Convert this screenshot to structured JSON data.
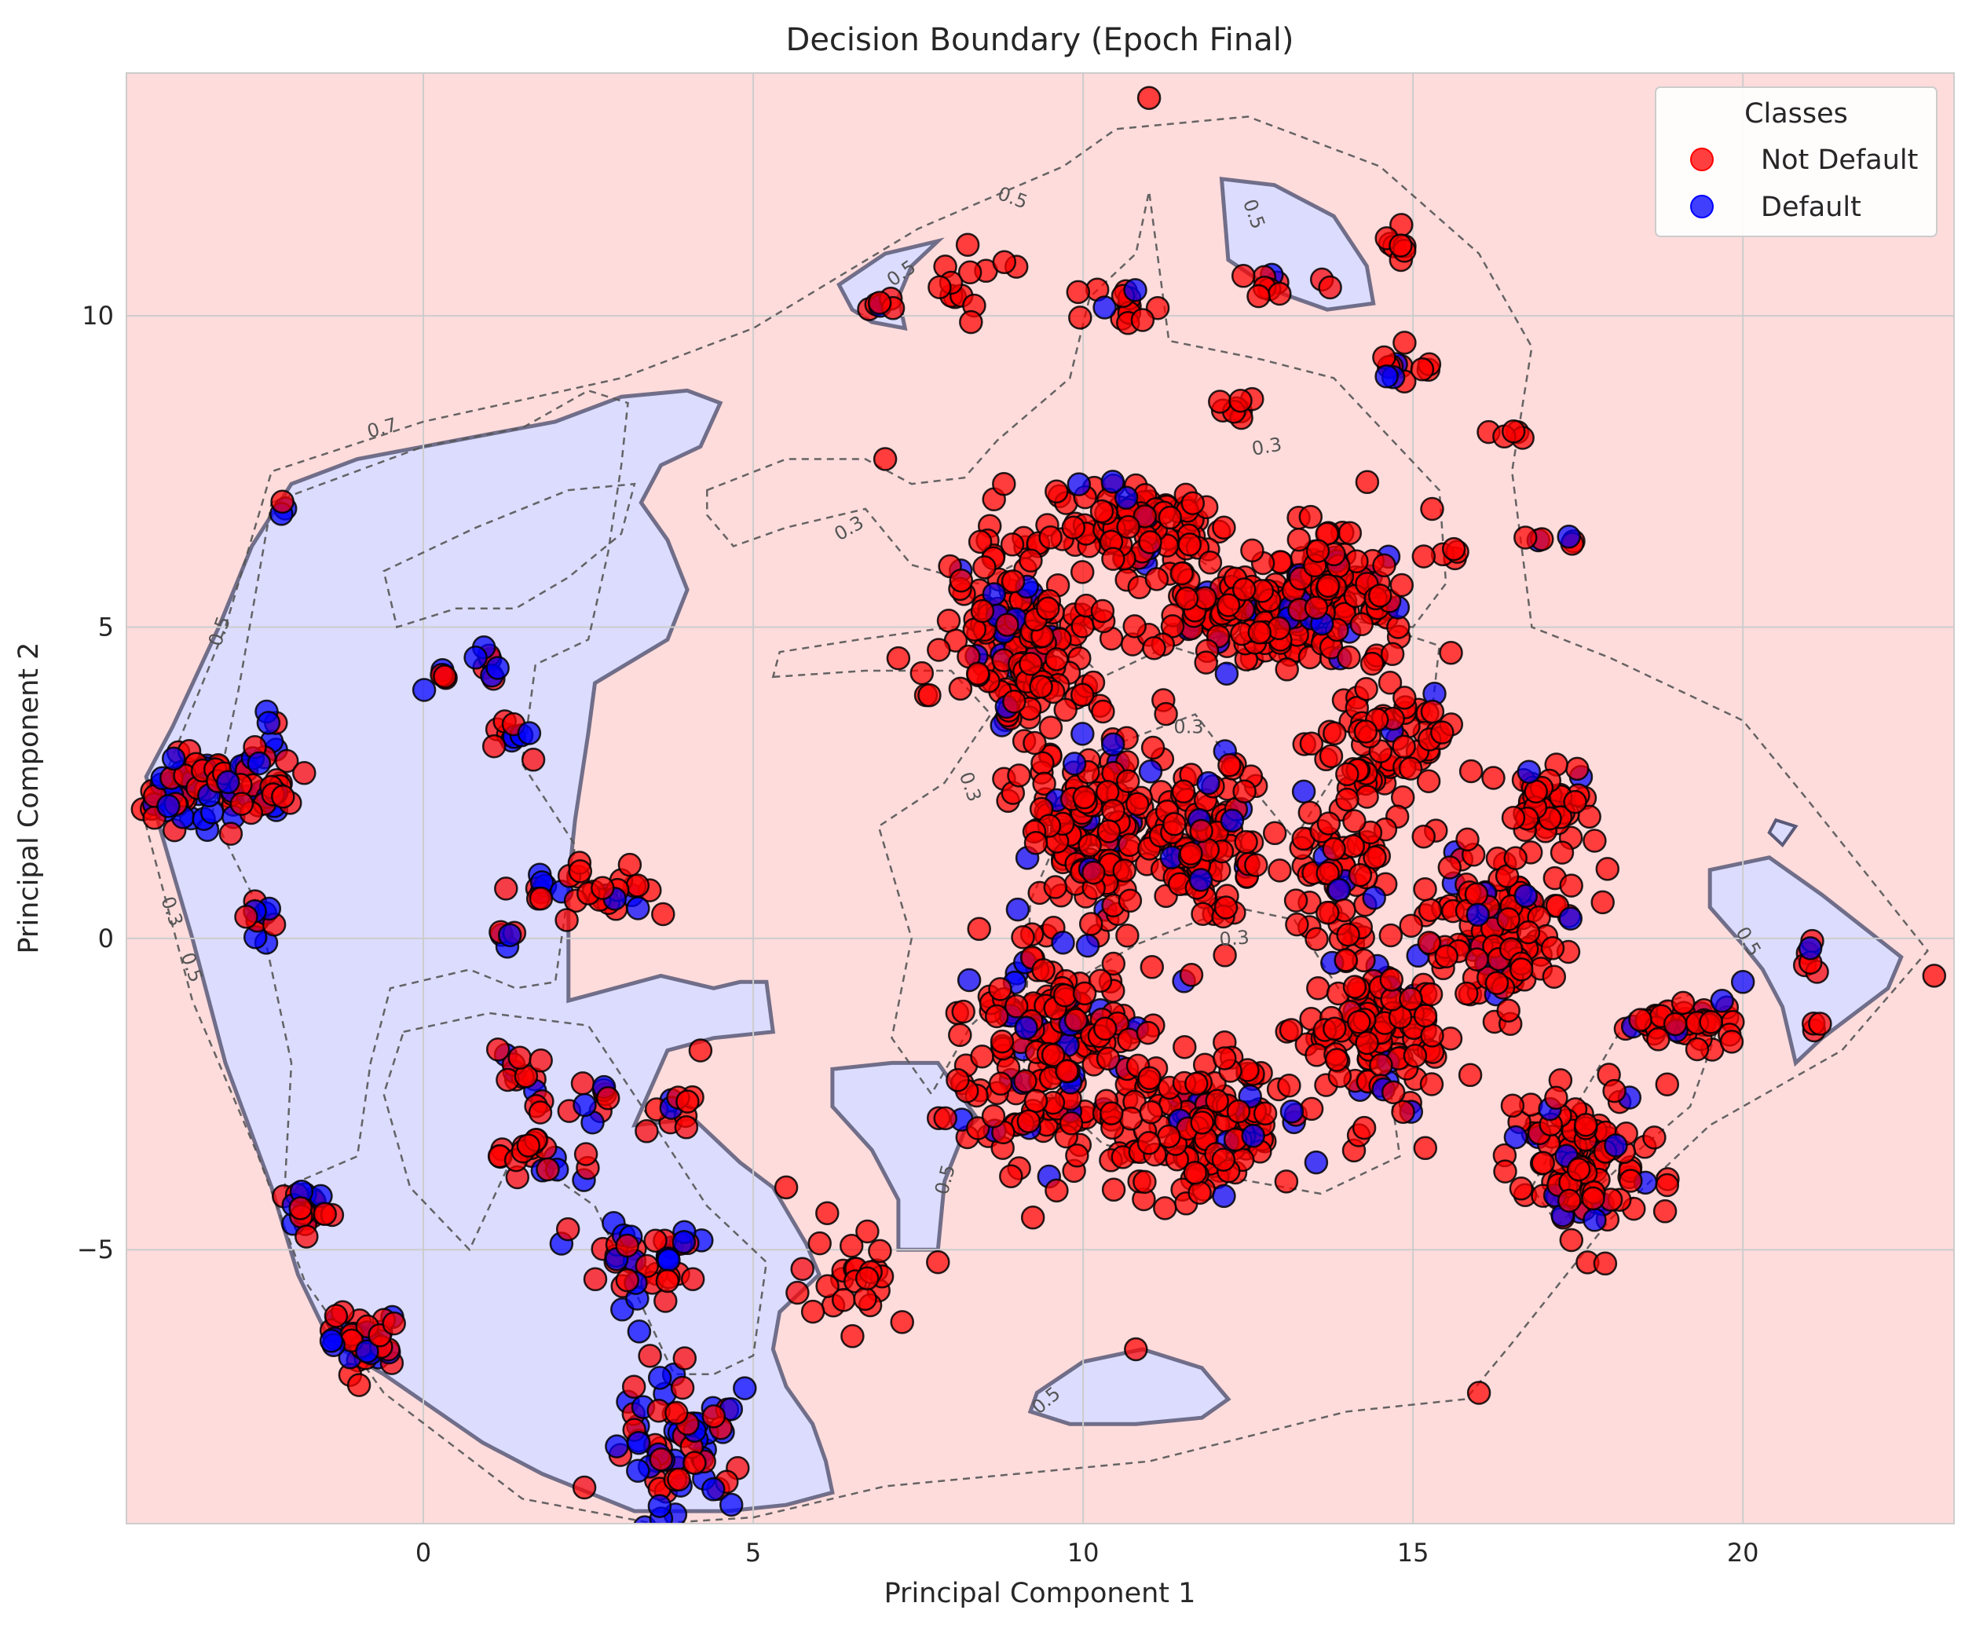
{
  "chart_data": {
    "type": "scatter",
    "title": "Decision Boundary (Epoch Final)",
    "xlabel": "Principal Component 1",
    "ylabel": "Principal Component 2",
    "xlim": [
      -4.5,
      23.2
    ],
    "ylim": [
      -9.4,
      13.9
    ],
    "xticks": [
      0,
      5,
      10,
      15,
      20
    ],
    "yticks": [
      -5,
      0,
      5,
      10
    ],
    "xtick_labels": [
      "0",
      "5",
      "10",
      "15",
      "20"
    ],
    "ytick_labels": [
      "−5",
      "0",
      "5",
      "10"
    ],
    "grid": true,
    "legend": {
      "title": "Classes",
      "position": "top-right",
      "entries": [
        {
          "label": "Not Default",
          "color": "#ff0000"
        },
        {
          "label": "Default",
          "color": "#0000ff"
        }
      ]
    },
    "background_color": "#ffdcdc",
    "boundary_region_color": "#dcdcff",
    "contour_labels": [
      "0.7",
      "0.5",
      "0.5",
      "0.5",
      "0.5",
      "0.5",
      "0.5",
      "0.5",
      "0.5",
      "0.3",
      "0.3",
      "0.3",
      "0.3",
      "0.3",
      "0.3"
    ],
    "clusters": [
      {
        "cx": -3.5,
        "cy": 2.4,
        "rx": 0.6,
        "ry": 0.6,
        "n": 55,
        "p_default": 0.5
      },
      {
        "cx": -2.5,
        "cy": 2.6,
        "rx": 0.5,
        "ry": 0.6,
        "n": 40,
        "p_default": 0.5
      },
      {
        "cx": -2.5,
        "cy": 0.3,
        "rx": 0.2,
        "ry": 0.4,
        "n": 10,
        "p_default": 0.5
      },
      {
        "cx": -2.1,
        "cy": 6.9,
        "rx": 0.1,
        "ry": 0.3,
        "n": 3,
        "p_default": 0.6
      },
      {
        "cx": -1.7,
        "cy": -4.3,
        "rx": 0.4,
        "ry": 0.4,
        "n": 20,
        "p_default": 0.5
      },
      {
        "cx": -0.9,
        "cy": -6.4,
        "rx": 0.5,
        "ry": 0.5,
        "n": 40,
        "p_default": 0.5
      },
      {
        "cx": 0.2,
        "cy": 4.2,
        "rx": 0.2,
        "ry": 0.15,
        "n": 6,
        "p_default": 0.4
      },
      {
        "cx": 1.0,
        "cy": 4.6,
        "rx": 0.3,
        "ry": 0.3,
        "n": 8,
        "p_default": 0.4
      },
      {
        "cx": 1.3,
        "cy": 3.2,
        "rx": 0.35,
        "ry": 0.25,
        "n": 10,
        "p_default": 0.4
      },
      {
        "cx": 1.7,
        "cy": 0.9,
        "rx": 0.3,
        "ry": 0.2,
        "n": 8,
        "p_default": 0.3
      },
      {
        "cx": 1.3,
        "cy": 0.0,
        "rx": 0.2,
        "ry": 0.1,
        "n": 5,
        "p_default": 0.6
      },
      {
        "cx": 1.5,
        "cy": -2.2,
        "rx": 0.3,
        "ry": 0.4,
        "n": 12,
        "p_default": 0.3
      },
      {
        "cx": 1.7,
        "cy": -3.4,
        "rx": 0.5,
        "ry": 0.5,
        "n": 25,
        "p_default": 0.3
      },
      {
        "cx": 2.7,
        "cy": -2.4,
        "rx": 0.3,
        "ry": 0.4,
        "n": 8,
        "p_default": 0.3
      },
      {
        "cx": 3.0,
        "cy": 0.8,
        "rx": 0.7,
        "ry": 0.4,
        "n": 25,
        "p_default": 0.1
      },
      {
        "cx": 3.4,
        "cy": -5.2,
        "rx": 0.7,
        "ry": 0.6,
        "n": 40,
        "p_default": 0.5
      },
      {
        "cx": 3.8,
        "cy": -8.2,
        "rx": 0.9,
        "ry": 0.9,
        "n": 70,
        "p_default": 0.4
      },
      {
        "cx": 3.8,
        "cy": -2.8,
        "rx": 0.4,
        "ry": 0.4,
        "n": 10,
        "p_default": 0.2
      },
      {
        "cx": 6.5,
        "cy": -5.4,
        "rx": 0.8,
        "ry": 0.6,
        "n": 25,
        "p_default": 0.05
      },
      {
        "cx": 7.0,
        "cy": 10.15,
        "rx": 0.3,
        "ry": 0.1,
        "n": 6,
        "p_default": 0.2
      },
      {
        "cx": 8.4,
        "cy": 10.6,
        "rx": 0.6,
        "ry": 0.3,
        "n": 12,
        "p_default": 0.1
      },
      {
        "cx": 10.4,
        "cy": 10.2,
        "rx": 0.6,
        "ry": 0.4,
        "n": 15,
        "p_default": 0.1
      },
      {
        "cx": 12.6,
        "cy": 10.5,
        "rx": 0.6,
        "ry": 0.2,
        "n": 10,
        "p_default": 0.05
      },
      {
        "cx": 14.8,
        "cy": 11.1,
        "rx": 0.2,
        "ry": 0.3,
        "n": 8,
        "p_default": 0.0
      },
      {
        "cx": 14.8,
        "cy": 9.2,
        "rx": 0.5,
        "ry": 0.3,
        "n": 12,
        "p_default": 0.3
      },
      {
        "cx": 12.3,
        "cy": 8.5,
        "rx": 0.3,
        "ry": 0.2,
        "n": 8,
        "p_default": 0.05
      },
      {
        "cx": 16.4,
        "cy": 8.1,
        "rx": 0.3,
        "ry": 0.1,
        "n": 5,
        "p_default": 0.0
      },
      {
        "cx": 17.1,
        "cy": 6.4,
        "rx": 0.3,
        "ry": 0.1,
        "n": 6,
        "p_default": 0.4
      },
      {
        "cx": 15.7,
        "cy": 6.2,
        "rx": 0.2,
        "ry": 0.1,
        "n": 4,
        "p_default": 0.0
      },
      {
        "cx": 9.0,
        "cy": 4.8,
        "rx": 0.9,
        "ry": 1.3,
        "n": 160,
        "p_default": 0.1
      },
      {
        "cx": 10.8,
        "cy": 6.6,
        "rx": 1.2,
        "ry": 0.7,
        "n": 110,
        "p_default": 0.1
      },
      {
        "cx": 12.3,
        "cy": 5.2,
        "rx": 1.2,
        "ry": 0.6,
        "n": 110,
        "p_default": 0.1
      },
      {
        "cx": 13.8,
        "cy": 5.6,
        "rx": 1.0,
        "ry": 0.9,
        "n": 120,
        "p_default": 0.1
      },
      {
        "cx": 14.6,
        "cy": 3.3,
        "rx": 0.9,
        "ry": 0.9,
        "n": 70,
        "p_default": 0.1
      },
      {
        "cx": 10.2,
        "cy": 1.7,
        "rx": 1.0,
        "ry": 1.4,
        "n": 150,
        "p_default": 0.12
      },
      {
        "cx": 11.9,
        "cy": 1.5,
        "rx": 0.7,
        "ry": 1.2,
        "n": 90,
        "p_default": 0.1
      },
      {
        "cx": 9.5,
        "cy": -1.8,
        "rx": 1.1,
        "ry": 1.6,
        "n": 180,
        "p_default": 0.12
      },
      {
        "cx": 11.8,
        "cy": -3.0,
        "rx": 1.2,
        "ry": 0.9,
        "n": 140,
        "p_default": 0.1
      },
      {
        "cx": 14.5,
        "cy": -1.5,
        "rx": 1.0,
        "ry": 1.2,
        "n": 120,
        "p_default": 0.1
      },
      {
        "cx": 16.2,
        "cy": 0.2,
        "rx": 1.0,
        "ry": 1.2,
        "n": 130,
        "p_default": 0.1
      },
      {
        "cx": 17.0,
        "cy": 2.1,
        "rx": 0.6,
        "ry": 0.5,
        "n": 50,
        "p_default": 0.1
      },
      {
        "cx": 13.8,
        "cy": 1.0,
        "rx": 0.8,
        "ry": 0.9,
        "n": 60,
        "p_default": 0.1
      },
      {
        "cx": 17.6,
        "cy": -3.6,
        "rx": 1.0,
        "ry": 1.1,
        "n": 110,
        "p_default": 0.1
      },
      {
        "cx": 19.1,
        "cy": -1.4,
        "rx": 0.7,
        "ry": 0.4,
        "n": 40,
        "p_default": 0.1
      },
      {
        "cx": 21.0,
        "cy": -0.3,
        "rx": 0.25,
        "ry": 0.3,
        "n": 6,
        "p_default": 0.2
      },
      {
        "cx": 21.1,
        "cy": -1.4,
        "rx": 0.1,
        "ry": 0.1,
        "n": 3,
        "p_default": 0.0
      },
      {
        "cx": 8.6,
        "cy": -3.0,
        "rx": 0.4,
        "ry": 0.2,
        "n": 8,
        "p_default": 0.1
      }
    ],
    "outliers": [
      {
        "x": 11.0,
        "y": 13.5,
        "class": "Not Default"
      },
      {
        "x": 10.8,
        "y": -6.6,
        "class": "Not Default"
      },
      {
        "x": 16.0,
        "y": -7.3,
        "class": "Not Default"
      },
      {
        "x": 22.9,
        "y": -0.6,
        "class": "Not Default"
      },
      {
        "x": 20.0,
        "y": -0.7,
        "class": "Default"
      },
      {
        "x": 7.2,
        "y": 4.5,
        "class": "Not Default"
      },
      {
        "x": 5.5,
        "y": -4.0,
        "class": "Not Default"
      },
      {
        "x": 4.2,
        "y": -1.8,
        "class": "Not Default"
      },
      {
        "x": 7.0,
        "y": 7.7,
        "class": "Not Default"
      },
      {
        "x": 8.8,
        "y": 7.3,
        "class": "Not Default"
      },
      {
        "x": 7.8,
        "y": -5.2,
        "class": "Not Default"
      },
      {
        "x": 8.3,
        "y": 9.9,
        "class": "Not Default"
      }
    ]
  }
}
